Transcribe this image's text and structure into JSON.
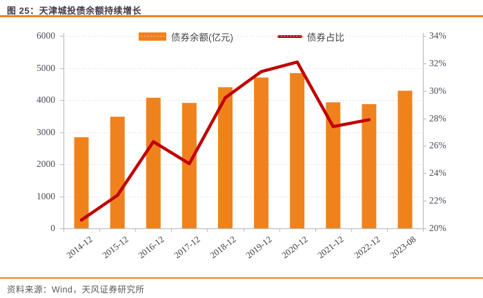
{
  "header": {
    "title": "图 25：天津城投债余额持续增长"
  },
  "legend": {
    "bar_label": "债券余额(亿元)",
    "line_label": "债券占比"
  },
  "footer": {
    "source": "资料来源：Wind，天风证券研究所"
  },
  "colors": {
    "bar_orange": "#f0821e",
    "line_red": "#c00000",
    "accent_rule": "#f0821e",
    "grid": "#d9d9d9",
    "axis_line": "#bfbfbf",
    "tick_text": "#4a4e5a",
    "title_text": "#3b3b4e",
    "source_text": "#595959"
  },
  "chart_data": {
    "type": "combo",
    "title": "图 25：天津城投债余额持续增长",
    "categories": [
      "2014-12",
      "2015-12",
      "2016-12",
      "2017-12",
      "2018-12",
      "2019-12",
      "2020-12",
      "2021-12",
      "2022-12",
      "2023-08"
    ],
    "series": [
      {
        "name": "债券余额(亿元)",
        "type": "bar",
        "axis": "left",
        "color": "#f0821e",
        "values": [
          2840,
          3480,
          4070,
          3910,
          4400,
          4700,
          4840,
          3930,
          3870,
          4290
        ]
      },
      {
        "name": "债券占比",
        "type": "line",
        "axis": "right",
        "color": "#c00000",
        "values": [
          20.6,
          22.4,
          26.3,
          24.7,
          29.5,
          31.4,
          32.1,
          27.4,
          27.9,
          null
        ]
      }
    ],
    "left_axis": {
      "min": 0,
      "max": 6000,
      "step": 1000,
      "tick_labels": [
        "0",
        "1000",
        "2000",
        "3000",
        "4000",
        "5000",
        "6000"
      ]
    },
    "right_axis": {
      "min": 20,
      "max": 34,
      "step": 2,
      "tick_labels": [
        "20%",
        "22%",
        "24%",
        "26%",
        "28%",
        "30%",
        "32%",
        "34%"
      ]
    },
    "grid": "horizontal-dotted",
    "legend_position": "top"
  }
}
